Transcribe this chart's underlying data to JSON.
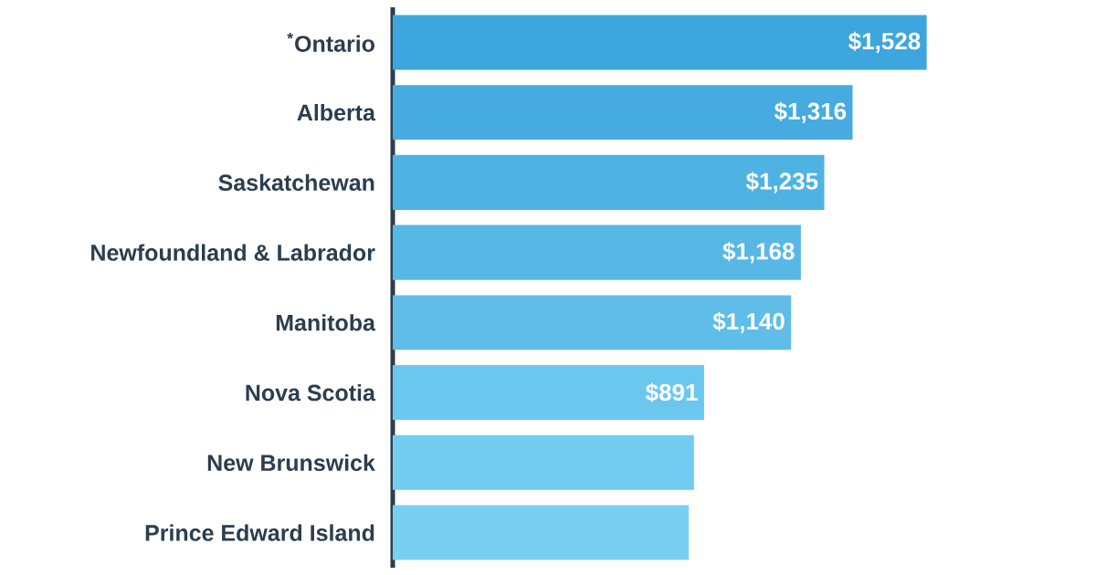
{
  "chart_data": {
    "type": "bar",
    "orientation": "horizontal",
    "categories": [
      "$^{*}$Ontario",
      "Alberta",
      "Saskatchewan",
      "Newfoundland & Labrador",
      "Manitoba",
      "Nova Scotia",
      "New Brunswick",
      "Prince Edward Island"
    ],
    "values": [
      1528,
      1316,
      1235,
      1168,
      1140,
      891,
      862,
      847
    ],
    "colors": [
      "#3ea6de",
      "#45abe0",
      "#4eb2e3",
      "#57b8e6",
      "#5fbde8",
      "#6cc7ee",
      "#72ccf0",
      "#78cff1"
    ],
    "value_labels": [
      "$1,528",
      "$1,316",
      "$1,235",
      "$1,168",
      "$1,140",
      "$891",
      null,
      null
    ]
  }
}
